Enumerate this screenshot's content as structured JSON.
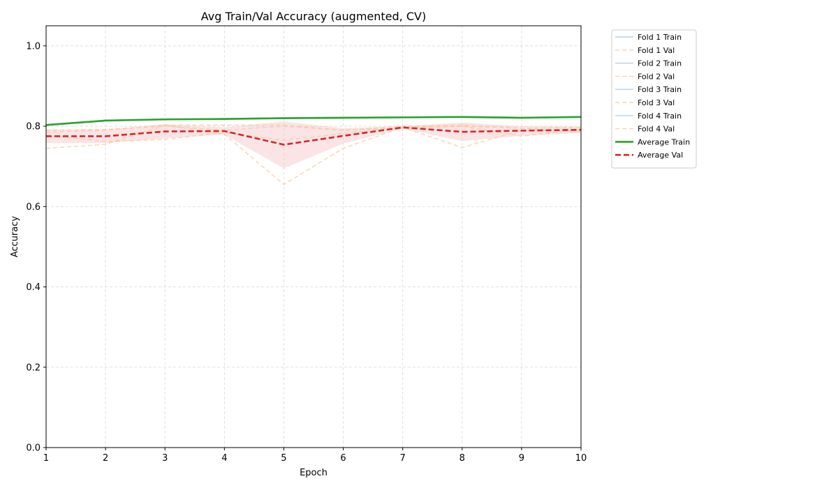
{
  "chart_data": {
    "type": "line",
    "title": "Avg Train/Val Accuracy (augmented, CV)",
    "xlabel": "Epoch",
    "ylabel": "Accuracy",
    "xlim": [
      1,
      10
    ],
    "ylim": [
      0.0,
      1.05
    ],
    "xticks": [
      1,
      2,
      3,
      4,
      5,
      6,
      7,
      8,
      9,
      10
    ],
    "yticks": [
      0.0,
      0.2,
      0.4,
      0.6,
      0.8,
      1.0
    ],
    "ytick_labels": [
      "0.0",
      "0.2",
      "0.4",
      "0.6",
      "0.8",
      "1.0"
    ],
    "grid": true,
    "legend_position": "outside-right-top",
    "x": [
      1,
      2,
      3,
      4,
      5,
      6,
      7,
      8,
      9,
      10
    ],
    "series": [
      {
        "name": "Fold 1 Train",
        "style": "train",
        "values": [
          0.802,
          0.813,
          0.817,
          0.818,
          0.82,
          0.821,
          0.822,
          0.823,
          0.821,
          0.823
        ]
      },
      {
        "name": "Fold 1 Val",
        "style": "val",
        "values": [
          0.79,
          0.792,
          0.8,
          0.79,
          0.8,
          0.79,
          0.795,
          0.8,
          0.795,
          0.797
        ]
      },
      {
        "name": "Fold 2 Train",
        "style": "train",
        "values": [
          0.803,
          0.815,
          0.818,
          0.819,
          0.821,
          0.822,
          0.823,
          0.824,
          0.822,
          0.824
        ]
      },
      {
        "name": "Fold 2 Val",
        "style": "val",
        "values": [
          0.785,
          0.79,
          0.803,
          0.803,
          0.803,
          0.79,
          0.8,
          0.803,
          0.795,
          0.785
        ]
      },
      {
        "name": "Fold 3 Train",
        "style": "train",
        "values": [
          0.803,
          0.814,
          0.817,
          0.819,
          0.82,
          0.821,
          0.822,
          0.823,
          0.821,
          0.823
        ]
      },
      {
        "name": "Fold 3 Val",
        "style": "val",
        "values": [
          0.745,
          0.755,
          0.803,
          0.78,
          0.655,
          0.745,
          0.797,
          0.747,
          0.79,
          0.79
        ]
      },
      {
        "name": "Fold 4 Train",
        "style": "train",
        "values": [
          0.804,
          0.815,
          0.818,
          0.819,
          0.821,
          0.822,
          0.822,
          0.824,
          0.822,
          0.824
        ]
      },
      {
        "name": "Fold 4 Val",
        "style": "val",
        "values": [
          0.778,
          0.762,
          0.767,
          0.785,
          0.765,
          0.782,
          0.797,
          0.8,
          0.775,
          0.793
        ]
      },
      {
        "name": "Average Train",
        "style": "avg-train",
        "values": [
          0.803,
          0.814,
          0.817,
          0.818,
          0.82,
          0.821,
          0.822,
          0.823,
          0.821,
          0.823
        ]
      },
      {
        "name": "Average Val",
        "style": "avg-val",
        "values": [
          0.775,
          0.775,
          0.787,
          0.788,
          0.754,
          0.776,
          0.797,
          0.786,
          0.789,
          0.791
        ]
      }
    ],
    "val_band": {
      "lower": [
        0.758,
        0.758,
        0.77,
        0.779,
        0.695,
        0.757,
        0.794,
        0.763,
        0.776,
        0.783
      ],
      "upper": [
        0.792,
        0.792,
        0.805,
        0.797,
        0.812,
        0.795,
        0.8,
        0.809,
        0.8,
        0.799
      ]
    },
    "colors": {
      "fold_train": "#a6c8e6",
      "fold_val": "#fcc99e",
      "avg_train": "#2ca02c",
      "avg_val": "#d62728",
      "band": "#f5c4c8",
      "grid": "#d9d9d9"
    }
  }
}
